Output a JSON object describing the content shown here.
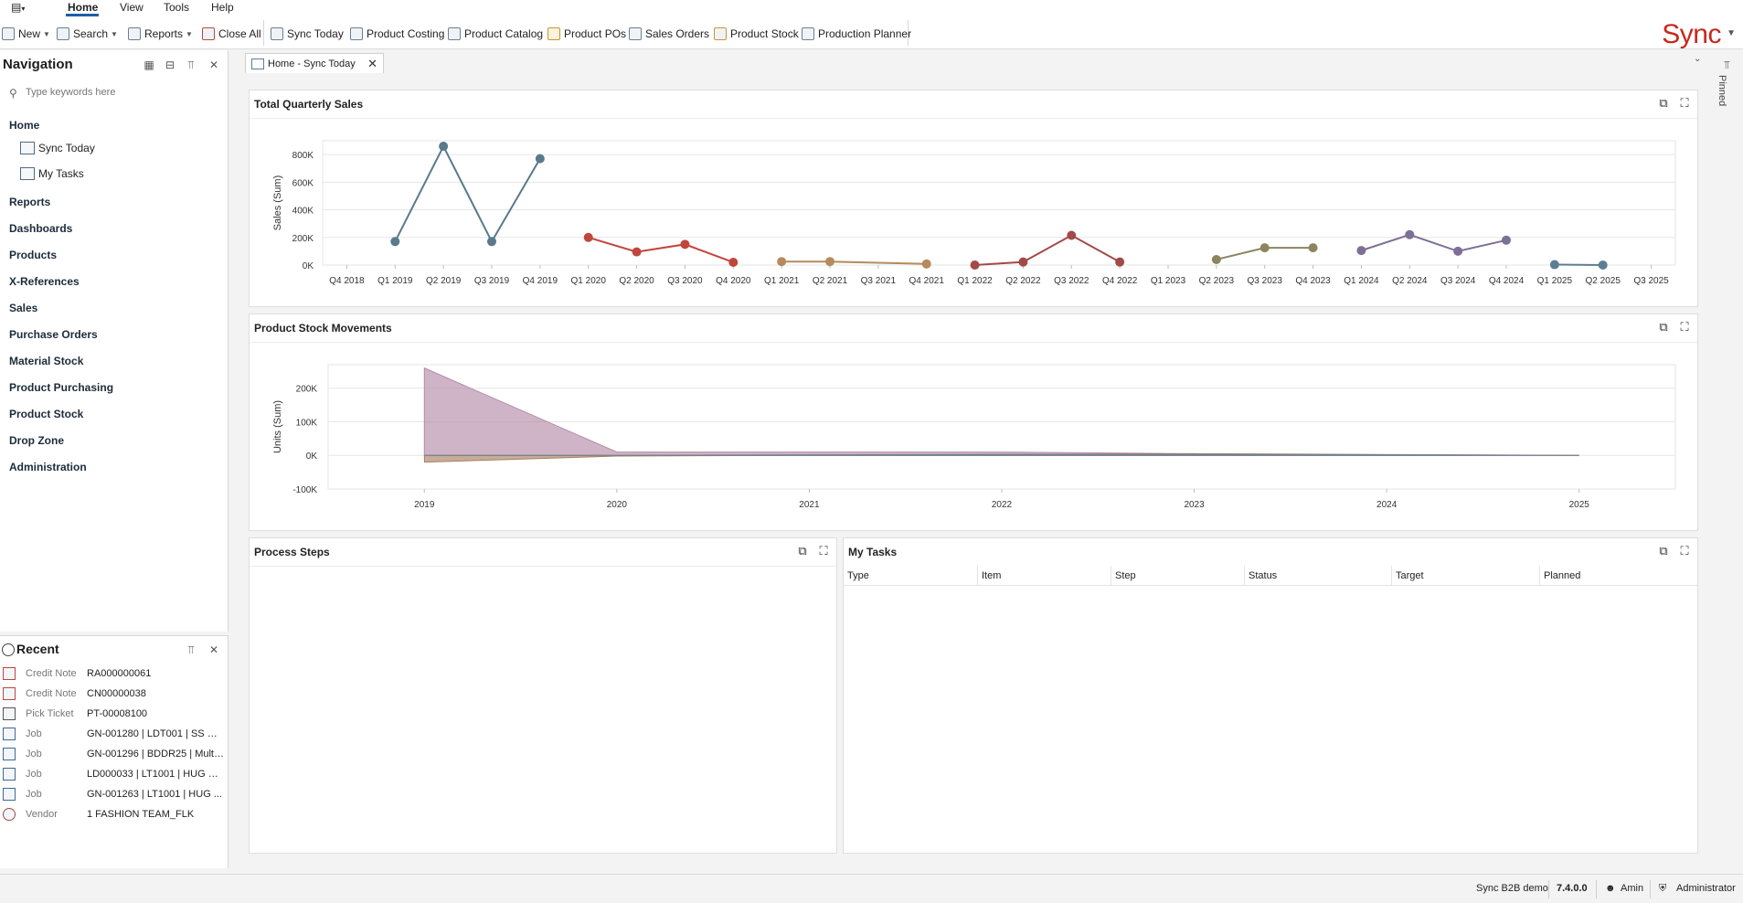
{
  "menu": {
    "app_menu_icon": "app-menu-icon",
    "items": [
      {
        "label": "Home",
        "active": true
      },
      {
        "label": "View",
        "active": false
      },
      {
        "label": "Tools",
        "active": false
      },
      {
        "label": "Help",
        "active": false
      }
    ]
  },
  "toolbar": {
    "new_label": "New",
    "search_label": "Search",
    "reports_label": "Reports",
    "close_all_label": "Close All",
    "sync_today_label": "Sync Today",
    "product_costing_label": "Product Costing",
    "product_catalog_label": "Product Catalog",
    "product_pos_label": "Product POs",
    "sales_orders_label": "Sales Orders",
    "product_stock_label": "Product Stock",
    "production_planner_label": "Production Planner"
  },
  "brand": {
    "logo_text": "Sync",
    "color": "#c8281e"
  },
  "navigation": {
    "title": "Navigation",
    "search_placeholder": "Type keywords here",
    "home_label": "Home",
    "sub_items": [
      "Sync Today",
      "My Tasks"
    ],
    "groups": [
      "Reports",
      "Dashboards",
      "Products",
      "X-References",
      "Sales",
      "Purchase Orders",
      "Material Stock",
      "Product Purchasing",
      "Product Stock",
      "Drop Zone",
      "Administration"
    ]
  },
  "recent": {
    "title": "Recent",
    "items": [
      {
        "type": "Credit Note",
        "name": "RA000000061"
      },
      {
        "type": "Credit Note",
        "name": "CN00000038"
      },
      {
        "type": "Pick Ticket",
        "name": "PT-00008100"
      },
      {
        "type": "Job",
        "name": "GN-001280 | LDT001 | SS VN..."
      },
      {
        "type": "Job",
        "name": "GN-001296 |  BDDR25 | Multi..."
      },
      {
        "type": "Job",
        "name": "LD000033 | LT1001 | HUG M..."
      },
      {
        "type": "Job",
        "name": "GN-001263 | LT1001 | HUG ..."
      },
      {
        "type": "Vendor",
        "name": "1 FASHION TEAM_FLK"
      }
    ]
  },
  "tab": {
    "label": "Home - Sync Today"
  },
  "pinned_label": "Pinned",
  "panels": {
    "sales_title": "Total Quarterly Sales",
    "stock_title": "Product Stock Movements",
    "process_title": "Process Steps",
    "tasks_title": "My Tasks",
    "tasks_columns": [
      "Type",
      "Item",
      "Step",
      "Status",
      "Target",
      "Planned"
    ]
  },
  "chart_data": [
    {
      "type": "line",
      "title": "Total Quarterly Sales",
      "ylabel": "Sales (Sum)",
      "ylim": [
        0,
        900000
      ],
      "y_ticks": [
        "0K",
        "200K",
        "400K",
        "600K",
        "800K"
      ],
      "y_tick_values": [
        0,
        200000,
        400000,
        600000,
        800000
      ],
      "categories": [
        "Q4 2018",
        "Q1 2019",
        "Q2 2019",
        "Q3 2019",
        "Q4 2019",
        "Q1 2020",
        "Q2 2020",
        "Q3 2020",
        "Q4 2020",
        "Q1 2021",
        "Q2 2021",
        "Q3 2021",
        "Q4 2021",
        "Q1 2022",
        "Q2 2022",
        "Q3 2022",
        "Q4 2022",
        "Q1 2023",
        "Q2 2023",
        "Q3 2023",
        "Q4 2023",
        "Q1 2024",
        "Q2 2024",
        "Q3 2024",
        "Q4 2024",
        "Q1 2025",
        "Q2 2025",
        "Q3 2025"
      ],
      "series": [
        {
          "color": "#587a8a",
          "points": [
            [
              "Q1 2019",
              170000
            ],
            [
              "Q2 2019",
              860000
            ],
            [
              "Q3 2019",
              170000
            ],
            [
              "Q4 2019",
              770000
            ]
          ]
        },
        {
          "color": "#c0463c",
          "points": [
            [
              "Q1 2020",
              200000
            ],
            [
              "Q2 2020",
              95000
            ],
            [
              "Q3 2020",
              150000
            ],
            [
              "Q4 2020",
              20000
            ]
          ]
        },
        {
          "color": "#b58a5c",
          "points": [
            [
              "Q1 2021",
              25000
            ],
            [
              "Q2 2021",
              25000
            ],
            [
              "Q4 2021",
              8000
            ]
          ]
        },
        {
          "color": "#a14a48",
          "points": [
            [
              "Q1 2022",
              0
            ],
            [
              "Q2 2022",
              22000
            ],
            [
              "Q3 2022",
              215000
            ],
            [
              "Q4 2022",
              22000
            ]
          ]
        },
        {
          "color": "#8b8560",
          "points": [
            [
              "Q2 2023",
              40000
            ],
            [
              "Q3 2023",
              125000
            ],
            [
              "Q4 2023",
              125000
            ]
          ]
        },
        {
          "color": "#7d6f95",
          "points": [
            [
              "Q1 2024",
              105000
            ],
            [
              "Q2 2024",
              220000
            ],
            [
              "Q3 2024",
              100000
            ],
            [
              "Q4 2024",
              180000
            ]
          ]
        },
        {
          "color": "#5b7e92",
          "points": [
            [
              "Q1 2025",
              3000
            ],
            [
              "Q2 2025",
              0
            ]
          ]
        }
      ]
    },
    {
      "type": "area",
      "title": "Product Stock Movements",
      "ylabel": "Units (Sum)",
      "ylim": [
        -100000,
        270000
      ],
      "y_ticks": [
        "-100K",
        "0K",
        "100K",
        "200K"
      ],
      "y_tick_values": [
        -100000,
        0,
        100000,
        200000
      ],
      "x_ticks": [
        "2019",
        "2020",
        "2021",
        "2022",
        "2023",
        "2024",
        "2025"
      ],
      "x_range": [
        2018.5,
        2025.5
      ],
      "series": [
        {
          "color": "#b48ca8",
          "points": [
            [
              2019,
              260000
            ],
            [
              2020,
              10000
            ],
            [
              2022,
              10000
            ],
            [
              2024,
              0
            ],
            [
              2025,
              0
            ]
          ]
        },
        {
          "color": "#a87f62",
          "points": [
            [
              2019,
              0
            ],
            [
              2019.001,
              -20000
            ],
            [
              2020,
              -2000
            ],
            [
              2021,
              0
            ],
            [
              2023,
              5000
            ],
            [
              2025,
              0
            ]
          ]
        },
        {
          "color": "#6f8291",
          "points": [
            [
              2019,
              0
            ],
            [
              2020,
              0
            ],
            [
              2022,
              3000
            ],
            [
              2024,
              2000
            ],
            [
              2025,
              0
            ]
          ]
        }
      ]
    }
  ],
  "status_bar": {
    "company": "Sync B2B demo",
    "version": "7.4.0.0",
    "user": "Amin",
    "role": "Administrator"
  }
}
